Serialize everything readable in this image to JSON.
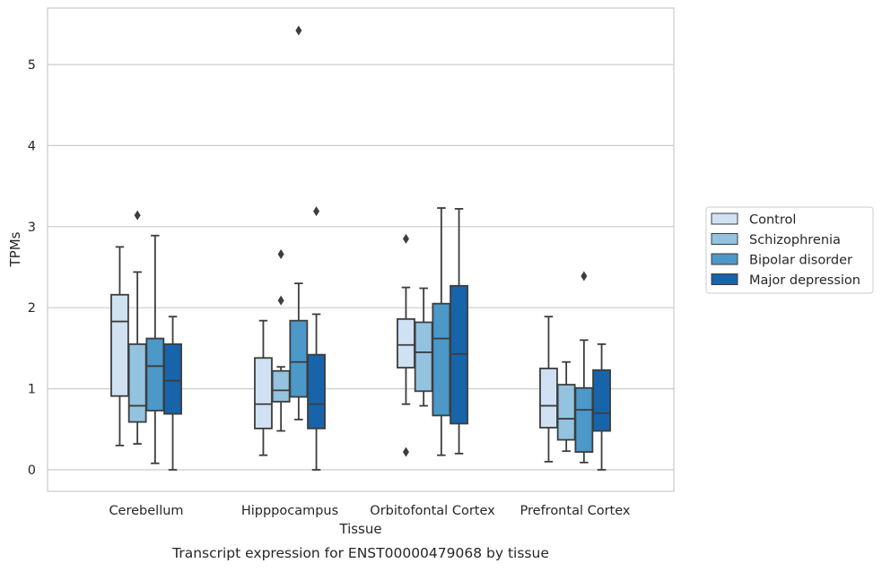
{
  "chart_data": {
    "type": "boxplot",
    "title": "Transcript expression for ENST00000479068 by tissue",
    "xlabel": "Tissue",
    "ylabel": "TPMs",
    "ylim": [
      -0.25,
      5.7
    ],
    "yticks": [
      0,
      1,
      2,
      3,
      4,
      5
    ],
    "grid": true,
    "legend_position": "right",
    "categories": [
      "Cerebellum",
      "Hipppocampus",
      "Orbitofontal Cortex",
      "Prefrontal Cortex"
    ],
    "series": [
      {
        "name": "Control",
        "color": "#cfe1f2",
        "boxes": [
          {
            "whislo": 0.3,
            "q1": 0.91,
            "med": 1.83,
            "q3": 2.16,
            "whishi": 2.75,
            "fliers": []
          },
          {
            "whislo": 0.18,
            "q1": 0.51,
            "med": 0.81,
            "q3": 1.38,
            "whishi": 1.84,
            "fliers": []
          },
          {
            "whislo": 0.81,
            "q1": 1.26,
            "med": 1.54,
            "q3": 1.86,
            "whishi": 2.25,
            "fliers": [
              2.85,
              0.22
            ]
          },
          {
            "whislo": 0.1,
            "q1": 0.52,
            "med": 0.79,
            "q3": 1.25,
            "whishi": 1.89,
            "fliers": []
          }
        ]
      },
      {
        "name": "Schizophrenia",
        "color": "#93c3df",
        "boxes": [
          {
            "whislo": 0.32,
            "q1": 0.59,
            "med": 0.79,
            "q3": 1.55,
            "whishi": 2.44,
            "fliers": [
              3.14
            ]
          },
          {
            "whislo": 0.48,
            "q1": 0.84,
            "med": 0.98,
            "q3": 1.22,
            "whishi": 1.27,
            "fliers": [
              2.66,
              2.09
            ]
          },
          {
            "whislo": 0.79,
            "q1": 0.97,
            "med": 1.45,
            "q3": 1.82,
            "whishi": 2.24,
            "fliers": []
          },
          {
            "whislo": 0.23,
            "q1": 0.37,
            "med": 0.63,
            "q3": 1.05,
            "whishi": 1.33,
            "fliers": []
          }
        ]
      },
      {
        "name": "Bipolar disorder",
        "color": "#4b98c9",
        "boxes": [
          {
            "whislo": 0.08,
            "q1": 0.73,
            "med": 1.28,
            "q3": 1.62,
            "whishi": 2.89,
            "fliers": []
          },
          {
            "whislo": 0.62,
            "q1": 0.9,
            "med": 1.33,
            "q3": 1.84,
            "whishi": 2.3,
            "fliers": [
              5.42
            ]
          },
          {
            "whislo": 0.18,
            "q1": 0.67,
            "med": 1.62,
            "q3": 2.05,
            "whishi": 3.23,
            "fliers": []
          },
          {
            "whislo": 0.09,
            "q1": 0.22,
            "med": 0.74,
            "q3": 1.01,
            "whishi": 1.6,
            "fliers": [
              2.39
            ]
          }
        ]
      },
      {
        "name": "Major depression",
        "color": "#1764ab",
        "boxes": [
          {
            "whislo": 0.0,
            "q1": 0.69,
            "med": 1.1,
            "q3": 1.55,
            "whishi": 1.89,
            "fliers": []
          },
          {
            "whislo": 0.0,
            "q1": 0.51,
            "med": 0.81,
            "q3": 1.42,
            "whishi": 1.92,
            "fliers": [
              3.19
            ]
          },
          {
            "whislo": 0.2,
            "q1": 0.57,
            "med": 1.43,
            "q3": 2.27,
            "whishi": 3.22,
            "fliers": []
          },
          {
            "whislo": 0.0,
            "q1": 0.48,
            "med": 0.7,
            "q3": 1.23,
            "whishi": 1.55,
            "fliers": []
          }
        ]
      }
    ]
  }
}
